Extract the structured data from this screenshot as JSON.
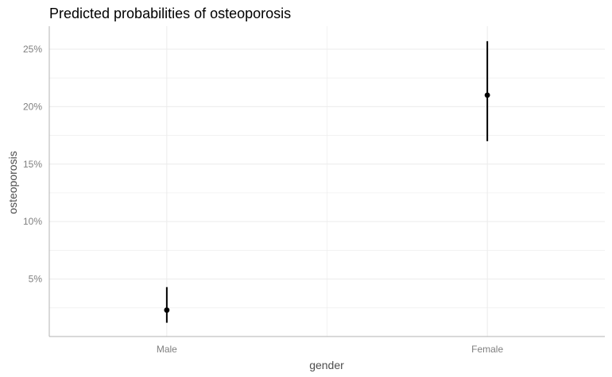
{
  "chart_data": {
    "type": "scatter",
    "title": "Predicted probabilities of osteoporosis",
    "xlabel": "gender",
    "ylabel": "osteoporosis",
    "categories": [
      "Male",
      "Female"
    ],
    "points": [
      {
        "category": "Male",
        "value": 0.023,
        "ci_low": 0.012,
        "ci_high": 0.043
      },
      {
        "category": "Female",
        "value": 0.21,
        "ci_low": 0.17,
        "ci_high": 0.257
      }
    ],
    "ylim": [
      0.0,
      0.27
    ],
    "yticks": [
      0.05,
      0.1,
      0.15,
      0.2,
      0.25
    ],
    "ytick_labels": [
      "5%",
      "10%",
      "15%",
      "20%",
      "25%"
    ],
    "grid": true,
    "colors": {
      "point": "#000000",
      "grid": "#ebebeb",
      "axis_text": "#7f7f7f",
      "axis_title": "#4d4d4d"
    }
  }
}
